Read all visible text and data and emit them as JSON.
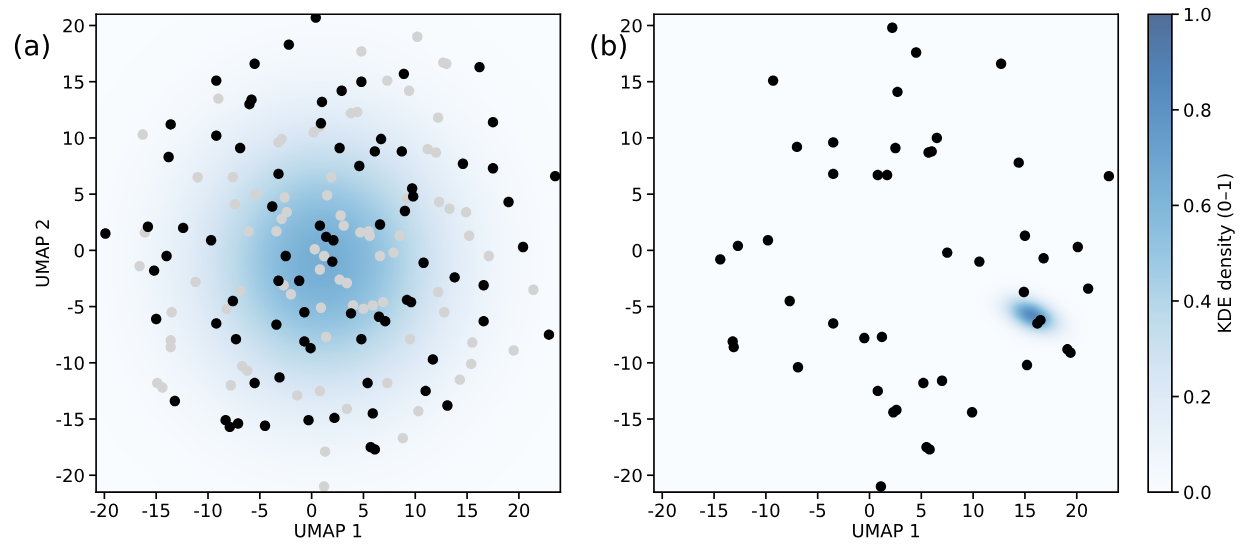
{
  "chart_data": [
    {
      "type": "scatter",
      "title": "(a)",
      "xlabel": "UMAP 1",
      "ylabel": "UMAP 2",
      "xlim": [
        -20.8,
        24
      ],
      "ylim": [
        -21.5,
        21
      ],
      "xticks": [
        -20,
        -15,
        -10,
        -5,
        0,
        5,
        10,
        15,
        20
      ],
      "yticks": [
        -20,
        -15,
        -10,
        -5,
        0,
        5,
        10,
        15,
        20
      ],
      "grid": false,
      "legend": false,
      "marker": "circle",
      "series": [
        {
          "color": "#d3d3d3",
          "x": [
            -16.3,
            -11.0,
            -9.0,
            -7.6,
            -5.4,
            -7.4,
            -6.1,
            -3.4,
            -2.9,
            -3.2,
            0.2,
            0.8,
            3.8,
            4.4,
            4.8,
            7.3,
            9.4,
            10.2,
            12.7,
            13.0,
            12.2,
            11.2,
            12.0,
            1.9,
            1.5,
            -2.6,
            -2.4,
            -2.9,
            2.8,
            3.1,
            4.7,
            5.5,
            5.6,
            8.5,
            9.2,
            12.3,
            13.3,
            14.9,
            15.2,
            17.1,
            6.6,
            7.9,
            -16.6,
            -16.1,
            0.3,
            1.2,
            -11.2,
            -6.9,
            -8.2,
            -13.5,
            -13.6,
            -13.6,
            -14.9,
            -14.4,
            -6.7,
            -6.2,
            -7.8,
            -2.7,
            -2.0,
            0.8,
            2.7,
            3.4,
            4.0,
            5.0,
            5.9,
            6.9,
            0.9,
            1.4,
            -1.4,
            0.8,
            3.4,
            1.3,
            1.2,
            7.3,
            10.3,
            8.8,
            9.5,
            12.2,
            12.8,
            14.3,
            15.4,
            15.5,
            19.5,
            21.4
          ],
          "values": [
            10.3,
            6.5,
            13.5,
            6.5,
            5.0,
            4.1,
            1.7,
            1.7,
            9.9,
            9.6,
            10.5,
            11.0,
            12.2,
            12.3,
            17.7,
            15.1,
            14.2,
            19.0,
            16.7,
            16.6,
            11.8,
            9.0,
            8.7,
            6.5,
            4.9,
            4.7,
            3.4,
            2.8,
            3.1,
            2.2,
            1.6,
            1.7,
            1.3,
            1.3,
            4.6,
            4.3,
            3.7,
            3.4,
            1.3,
            -0.5,
            -0.5,
            -0.2,
            -1.4,
            1.6,
            0.1,
            -0.5,
            -2.8,
            -3.6,
            -5.2,
            -5.5,
            -8.0,
            -8.6,
            -11.8,
            -12.2,
            -10.3,
            -10.7,
            -12.0,
            -3.1,
            -3.9,
            -1.7,
            -2.6,
            -2.9,
            -4.9,
            -5.2,
            -4.9,
            -4.6,
            -5.1,
            -7.7,
            -12.9,
            -12.5,
            -14.1,
            -17.9,
            -21.0,
            -11.8,
            -14.3,
            -16.7,
            -7.9,
            -3.7,
            -5.5,
            -11.5,
            -10.1,
            -8.2,
            -8.9,
            -3.5
          ]
        },
        {
          "color": "#000000",
          "x": [
            0.4,
            -2.2,
            -5.5,
            -9.2,
            -5.8,
            -6.0,
            1.0,
            2.9,
            4.8,
            8.9,
            16.2,
            -13.6,
            -13.8,
            -9.2,
            -6.9,
            0.9,
            2.7,
            6.7,
            6.1,
            8.7,
            4.6,
            -3.2,
            14.6,
            17.5,
            17.5,
            23.5,
            19.0,
            9.7,
            9.8,
            9.0,
            -3.8,
            -9.7,
            -12.4,
            -15.8,
            -19.9,
            -14.0,
            -15.2,
            0.8,
            1.4,
            2.1,
            6.6,
            -2.5,
            2.0,
            10.8,
            13.8,
            20.4,
            -3.2,
            -1.2,
            16.6,
            -15.0,
            -7.6,
            -9.2,
            -3.4,
            -0.7,
            3.8,
            6.5,
            7.1,
            9.2,
            9.6,
            16.6,
            22.9,
            -7.3,
            -0.7,
            -0.1,
            4.8,
            -3.1,
            -5.5,
            5.4,
            11.7,
            11.0,
            13.1,
            -13.2,
            -8.3,
            -7.9,
            -7.1,
            -4.5,
            -0.3,
            2.2,
            5.9,
            5.7,
            6.1
          ],
          "values": [
            20.7,
            18.3,
            16.6,
            15.1,
            13.4,
            13.0,
            13.2,
            14.2,
            15.0,
            15.7,
            16.3,
            11.2,
            8.3,
            10.2,
            9.1,
            11.3,
            9.1,
            9.9,
            8.8,
            8.8,
            7.5,
            6.8,
            7.7,
            11.4,
            7.3,
            6.6,
            4.3,
            5.5,
            4.8,
            3.5,
            3.9,
            0.9,
            2.0,
            2.1,
            1.5,
            -0.5,
            -1.8,
            2.2,
            1.2,
            0.9,
            2.3,
            -0.5,
            -1.0,
            -1.1,
            -2.4,
            0.3,
            -2.7,
            -2.7,
            -3.1,
            -6.1,
            -4.5,
            -6.5,
            -6.6,
            -5.5,
            -5.6,
            -5.9,
            -6.3,
            -4.4,
            -4.6,
            -6.3,
            -7.5,
            -7.9,
            -8.1,
            -8.7,
            -7.9,
            -11.3,
            -11.8,
            -11.8,
            -9.7,
            -12.5,
            -13.8,
            -13.4,
            -15.1,
            -15.7,
            -15.4,
            -15.6,
            -15.1,
            -14.9,
            -14.5,
            -17.5,
            -17.7
          ]
        }
      ]
    },
    {
      "type": "scatter",
      "title": "(b)",
      "xlabel": "UMAP 1",
      "xlim": [
        -20.8,
        24
      ],
      "ylim": [
        -21.5,
        21
      ],
      "xticks": [
        -20,
        -15,
        -10,
        -5,
        0,
        5,
        10,
        15,
        20
      ],
      "yticks": [
        -20,
        -15,
        -10,
        -5,
        0,
        5,
        10,
        15,
        20
      ],
      "grid": false,
      "legend": false,
      "marker": "circle",
      "clim": [
        0,
        1
      ],
      "cticks": [
        {
          "value": 0,
          "label": "0.0"
        },
        0.2,
        0.4,
        0.6,
        0.8,
        {
          "value": 1,
          "label": "1.0"
        }
      ],
      "clabel": "KDE density (0–1)",
      "series": [
        {
          "color": "#000000",
          "x": [
            -14.4,
            -12.7,
            -9.8,
            -9.3,
            -7.0,
            -3.5,
            -3.5,
            0.8,
            1.7,
            2.2,
            2.7,
            2.5,
            4.5,
            5.7,
            6.0,
            6.5,
            7.5,
            10.6,
            12.7,
            14.4,
            15.0,
            16.8,
            20.1,
            23.1,
            14.9,
            16.2,
            16.5,
            21.1,
            -7.7,
            -3.5,
            -0.5,
            1.2,
            -13.2,
            -13.1,
            -6.9,
            15.2,
            19.1,
            19.4,
            0.8,
            5.2,
            7.0,
            2.6,
            2.3,
            9.9,
            5.5,
            5.8,
            1.1
          ],
          "values": [
            -0.8,
            0.4,
            0.9,
            15.1,
            9.2,
            9.6,
            6.8,
            6.7,
            6.7,
            19.8,
            14.1,
            9.1,
            17.6,
            8.7,
            8.8,
            10.0,
            -0.2,
            -1.0,
            16.6,
            7.8,
            1.3,
            -0.7,
            0.3,
            6.6,
            -3.7,
            -6.5,
            -6.2,
            -3.4,
            -4.5,
            -6.5,
            -7.8,
            -7.7,
            -8.1,
            -8.6,
            -10.4,
            -10.2,
            -8.8,
            -9.1,
            -12.5,
            -11.8,
            -11.6,
            -14.2,
            -14.4,
            -14.4,
            -17.5,
            -17.7,
            -21.0
          ]
        }
      ]
    }
  ]
}
